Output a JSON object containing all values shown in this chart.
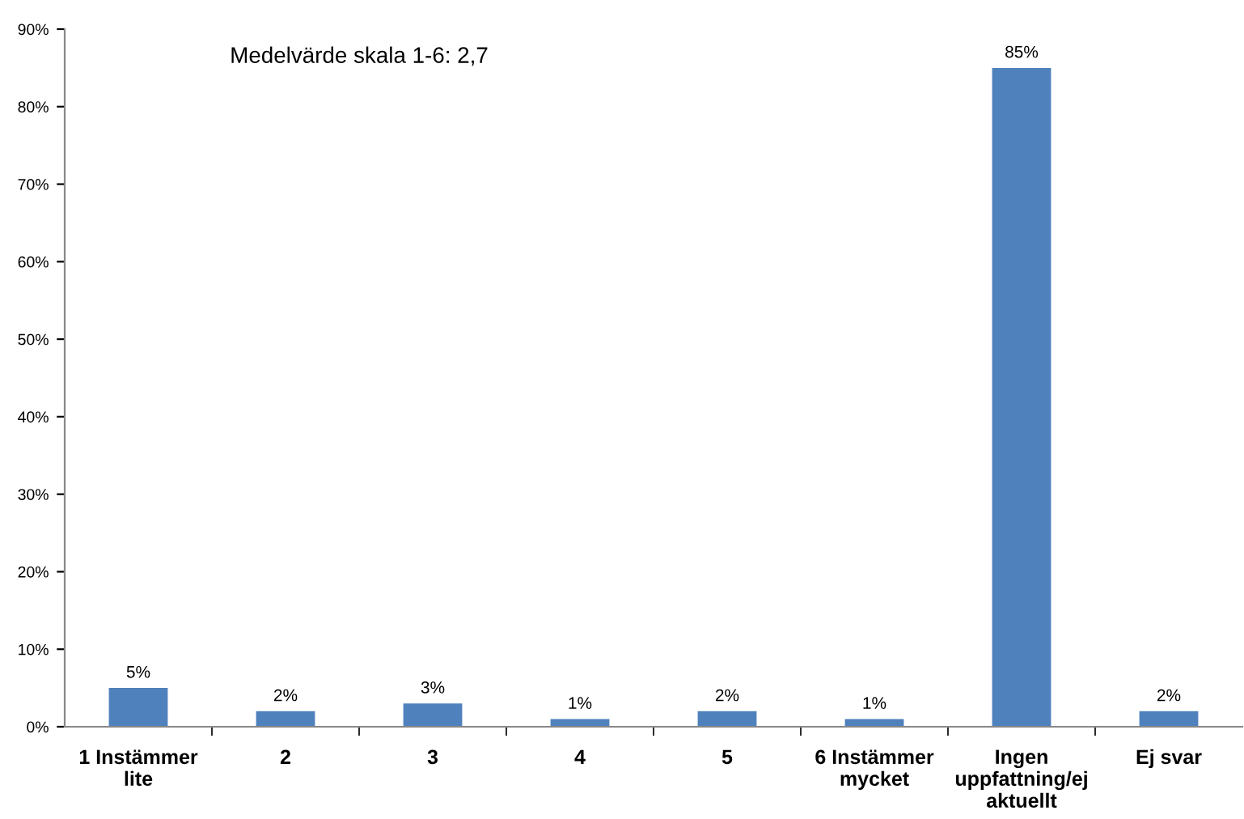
{
  "chart_data": {
    "type": "bar",
    "categories": [
      "1 Instämmer\nlite",
      "2",
      "3",
      "4",
      "5",
      "6 Instämmer\nmycket",
      "Ingen\nuppfattning/ej\naktuellt",
      "Ej svar"
    ],
    "values": [
      5,
      2,
      3,
      1,
      2,
      1,
      85,
      2
    ],
    "value_labels": [
      "5%",
      "2%",
      "3%",
      "1%",
      "2%",
      "1%",
      "85%",
      "2%"
    ],
    "color": "#4f81bd",
    "ylim": [
      0,
      90
    ],
    "yticks": [
      {
        "value": 0,
        "label": "0%"
      },
      {
        "value": 10,
        "label": "10%"
      },
      {
        "value": 20,
        "label": "20%"
      },
      {
        "value": 30,
        "label": "30%"
      },
      {
        "value": 40,
        "label": "40%"
      },
      {
        "value": 50,
        "label": "50%"
      },
      {
        "value": 60,
        "label": "60%"
      },
      {
        "value": 70,
        "label": "70%"
      },
      {
        "value": 80,
        "label": "80%"
      },
      {
        "value": 90,
        "label": "90%"
      }
    ],
    "annotations": [
      "Medelvärde skala 1-6: 2,7"
    ],
    "grid": false,
    "legend": false
  }
}
